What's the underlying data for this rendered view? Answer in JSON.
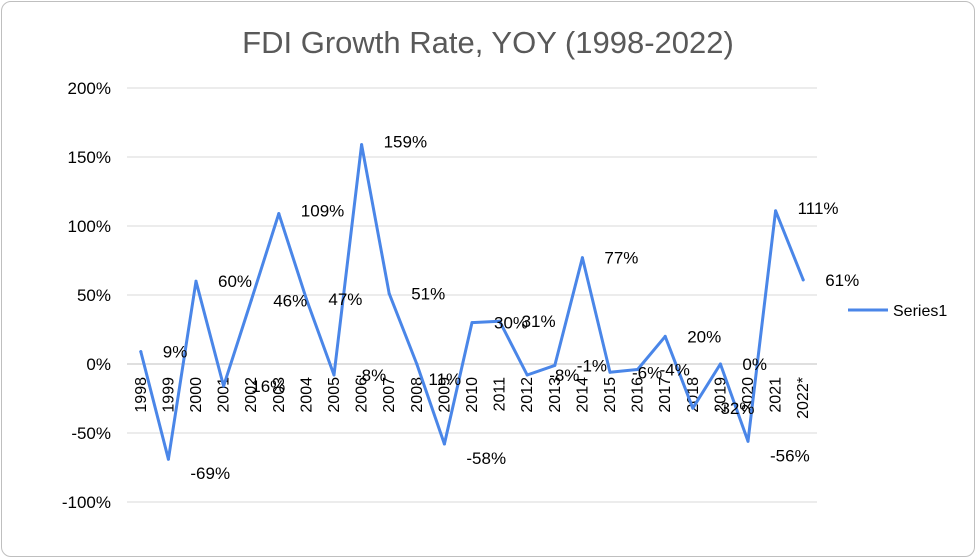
{
  "chart_data": {
    "type": "line",
    "title": "FDI Growth Rate, YOY (1998-2022)",
    "xlabel": "",
    "ylabel": "",
    "categories": [
      "1998",
      "1999",
      "2000",
      "2001",
      "2002",
      "2003",
      "2004",
      "2005",
      "2006",
      "2007",
      "2008",
      "2009",
      "2010",
      "2011",
      "2012",
      "2013",
      "2014",
      "2015",
      "2016",
      "2017",
      "2018",
      "2019",
      "2020",
      "2021",
      "2022*"
    ],
    "series": [
      {
        "name": "Series1",
        "color": "#4a86e8",
        "values": [
          9,
          -69,
          60,
          -16,
          46,
          109,
          47,
          -8,
          159,
          51,
          0,
          -58,
          30,
          31,
          -8,
          -1,
          77,
          -6,
          -4,
          20,
          -32,
          0,
          -56,
          111,
          61
        ],
        "labels": [
          "9%",
          "-69%",
          "60%",
          "-16%",
          "46%",
          "109%",
          "47%",
          "-8%",
          "159%",
          "51%",
          "",
          "-58%",
          "30%",
          "31%",
          "-8%",
          "-1%",
          "77%",
          "-6%",
          "-4%",
          "20%",
          "-32%",
          "0%",
          "-56%",
          "111%",
          "61%"
        ]
      }
    ],
    "ylim": [
      -100,
      200
    ],
    "yticks": [
      200,
      150,
      100,
      50,
      0,
      -50,
      -100
    ],
    "ytick_labels": [
      "200%",
      "150%",
      "100%",
      "50%",
      "0%",
      "-50%",
      "-100%"
    ],
    "extra_labels": [
      "11%"
    ],
    "grid": true,
    "legend_position": "right"
  }
}
